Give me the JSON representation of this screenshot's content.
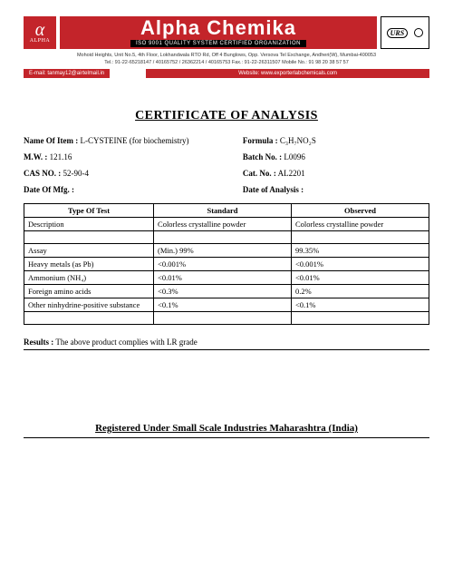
{
  "header": {
    "logo_symbol": "α",
    "logo_text": "ALPHA",
    "company": "Alpha Chemika",
    "iso_line": "ISO 9001 QUALITY SYSTEM CERTIFIED ORGANIZATION",
    "badge_urs": "URS",
    "address_line1": "Mohoid Heights, Unit No.5, 4th Floor, Lokhandwala RTO Rd, Off 4 Bunglows, Opp. Versova Tel Exchange, Andheri(W), Mumbai-400053",
    "address_line2": "Tel.: 91-22-65218147 / 40165752 / 26362214 / 40165753        Fax.: 91-22-26311507        Mobile No.: 91 98 20 38 57 57",
    "strip_email": "E-mail: tanmay12@airtelmail.in",
    "strip_site": "Website: www.exporterlabchemicals.com"
  },
  "doc": {
    "title": "CERTIFICATE OF ANALYSIS",
    "name_label": "Name Of Item :",
    "name_value": "L-CYSTEINE (for biochemistry)",
    "formula_label": "Formula :",
    "formula_value": "C₃H₇NO₂S",
    "mw_label": "M.W. :",
    "mw_value": "121.16",
    "batch_label": "Batch No. :",
    "batch_value": "L0096",
    "cas_label": "CAS NO. :",
    "cas_value": "52-90-4",
    "cat_label": "Cat. No. :",
    "cat_value": "AL2201",
    "mfg_label": "Date Of Mfg. :",
    "mfg_value": "",
    "doa_label": "Date of Analysis :",
    "doa_value": ""
  },
  "table": {
    "h1": "Type Of Test",
    "h2": "Standard",
    "h3": "Observed",
    "rows": [
      {
        "t": "Description",
        "s": "Colorless crystalline powder",
        "o": "Colorless crystalline powder"
      },
      {
        "t": "",
        "s": "",
        "o": ""
      },
      {
        "t": "Assay",
        "s": "(Min.) 99%",
        "o": "99.35%"
      },
      {
        "t": "Heavy metals (as Pb)",
        "s": "<0.001%",
        "o": "<0.001%"
      },
      {
        "t": "Ammonium (NH₄)",
        "s": "<0.01%",
        "o": "<0.01%"
      },
      {
        "t": "Foreign amino acids",
        "s": "<0.3%",
        "o": "0.2%"
      },
      {
        "t": "Other ninhydrine-positive substance",
        "s": "<0.1%",
        "o": "<0.1%"
      },
      {
        "t": "",
        "s": "",
        "o": ""
      }
    ]
  },
  "results": {
    "label": "Results :",
    "text": " The  above product complies with  LR  grade"
  },
  "footer": "Registered Under Small Scale Industries Maharashtra (India)"
}
